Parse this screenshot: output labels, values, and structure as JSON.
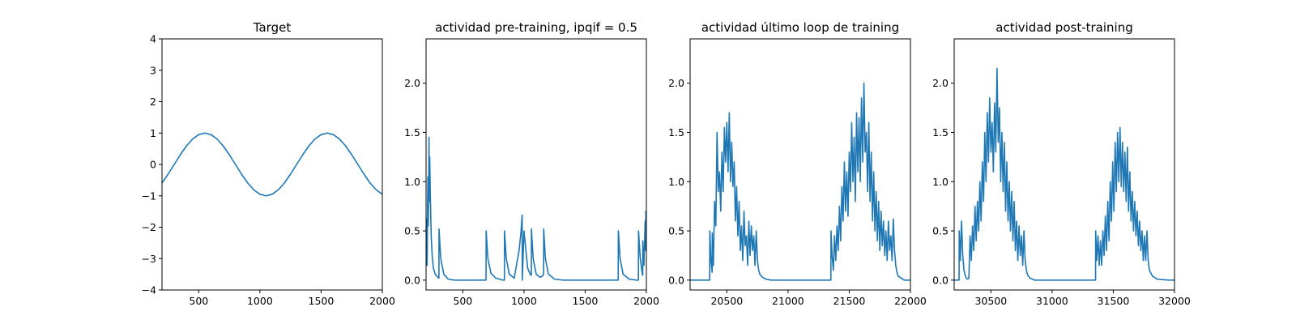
{
  "chart_data": [
    {
      "type": "line",
      "title": "Target",
      "xlim": [
        200,
        2000
      ],
      "ylim": [
        -4,
        4
      ],
      "xticks": [
        500,
        1000,
        1500,
        2000
      ],
      "xtick_labels": [
        "500",
        "1000",
        "1500",
        "2000"
      ],
      "yticks": [
        -4,
        -3,
        -2,
        -1,
        0,
        1,
        2,
        3,
        4
      ],
      "ytick_labels": [
        "−4",
        "−3",
        "−2",
        "−1",
        "0",
        "1",
        "2",
        "3",
        "4"
      ],
      "series": [
        {
          "color": "#1f77b4",
          "x": [
            200,
            250,
            300,
            350,
            400,
            450,
            500,
            550,
            600,
            650,
            700,
            750,
            800,
            850,
            900,
            950,
            1000,
            1050,
            1100,
            1150,
            1200,
            1250,
            1300,
            1350,
            1400,
            1450,
            1500,
            1550,
            1600,
            1650,
            1700,
            1750,
            1800,
            1850,
            1900,
            1950,
            2000
          ],
          "y": [
            -0.59,
            -0.31,
            0.0,
            0.31,
            0.59,
            0.81,
            0.95,
            1.0,
            0.95,
            0.81,
            0.59,
            0.31,
            0.0,
            -0.31,
            -0.59,
            -0.81,
            -0.95,
            -1.0,
            -0.95,
            -0.81,
            -0.59,
            -0.31,
            0.0,
            0.31,
            0.59,
            0.81,
            0.95,
            1.0,
            0.95,
            0.81,
            0.59,
            0.31,
            0.0,
            -0.31,
            -0.59,
            -0.81,
            -0.95
          ]
        }
      ]
    },
    {
      "type": "line",
      "title": "actividad pre-training, ipqif = 0.5",
      "xlim": [
        200,
        2000
      ],
      "ylim": [
        -0.1,
        2.45
      ],
      "xticks": [
        500,
        1000,
        1500,
        2000
      ],
      "xtick_labels": [
        "500",
        "1000",
        "1500",
        "2000"
      ],
      "yticks": [
        0.0,
        0.5,
        1.0,
        1.5,
        2.0
      ],
      "ytick_labels": [
        "0.0",
        "0.5",
        "1.0",
        "1.5",
        "2.0"
      ],
      "series": [
        {
          "color": "#1f77b4",
          "x": [
            200,
            203,
            206,
            209,
            212,
            215,
            218,
            221,
            224,
            227,
            230,
            235,
            242,
            250,
            260,
            275,
            295,
            305,
            306,
            320,
            345,
            380,
            430,
            500,
            600,
            680,
            690,
            691,
            705,
            730,
            770,
            830,
            840,
            841,
            855,
            880,
            920,
            960,
            975,
            985,
            986,
            1000,
            1030,
            1055,
            1060,
            1061,
            1075,
            1100,
            1130,
            1150,
            1160,
            1161,
            1175,
            1200,
            1250,
            1320,
            1450,
            1600,
            1700,
            1760,
            1770,
            1771,
            1785,
            1810,
            1860,
            1920,
            1935,
            1936,
            1950,
            1968,
            1970,
            1971,
            1980,
            1990,
            1995,
            1996,
            2000
          ],
          "y": [
            0.18,
            0.62,
            0.35,
            0.15,
            0.7,
            1.05,
            0.55,
            0.85,
            1.45,
            0.8,
            1.25,
            0.85,
            0.45,
            0.25,
            0.12,
            0.06,
            0.03,
            0.02,
            0.52,
            0.22,
            0.06,
            0.01,
            0.0,
            0.0,
            0.0,
            0.0,
            0.0,
            0.5,
            0.22,
            0.07,
            0.02,
            0.0,
            0.0,
            0.5,
            0.22,
            0.06,
            0.02,
            0.3,
            0.48,
            0.66,
            0.0,
            0.5,
            0.12,
            0.05,
            0.05,
            0.52,
            0.22,
            0.06,
            0.03,
            0.04,
            0.06,
            0.52,
            0.22,
            0.06,
            0.01,
            0.0,
            0.0,
            0.0,
            0.0,
            0.0,
            0.0,
            0.5,
            0.22,
            0.06,
            0.01,
            0.0,
            0.0,
            0.5,
            0.22,
            0.05,
            0.05,
            0.4,
            0.15,
            0.6,
            0.3,
            0.7,
            0.3
          ]
        }
      ]
    },
    {
      "type": "line",
      "title": "actividad último loop de training",
      "xlim": [
        20200,
        22000
      ],
      "ylim": [
        -0.1,
        2.45
      ],
      "xticks": [
        20500,
        21000,
        21500,
        22000
      ],
      "xtick_labels": [
        "20500",
        "21000",
        "21500",
        "22000"
      ],
      "yticks": [
        0.0,
        0.5,
        1.0,
        1.5,
        2.0
      ],
      "ytick_labels": [
        "0.0",
        "0.5",
        "1.0",
        "1.5",
        "2.0"
      ],
      "series": [
        {
          "color": "#1f77b4",
          "x": [
            20200,
            20300,
            20360,
            20361,
            20370,
            20380,
            20381,
            20390,
            20400,
            20410,
            20420,
            20430,
            20440,
            20450,
            20460,
            20470,
            20480,
            20490,
            20500,
            20510,
            20520,
            20530,
            20540,
            20550,
            20560,
            20570,
            20580,
            20590,
            20600,
            20610,
            20620,
            20630,
            20640,
            20650,
            20660,
            20670,
            20680,
            20690,
            20700,
            20710,
            20720,
            20730,
            20740,
            20750,
            20760,
            20770,
            20790,
            20820,
            20860,
            20950,
            21100,
            21250,
            21350,
            21351,
            21360,
            21370,
            21380,
            21390,
            21400,
            21410,
            21420,
            21430,
            21440,
            21450,
            21460,
            21470,
            21480,
            21490,
            21500,
            21510,
            21520,
            21530,
            21540,
            21550,
            21560,
            21570,
            21580,
            21590,
            21600,
            21610,
            21620,
            21630,
            21640,
            21650,
            21660,
            21670,
            21680,
            21690,
            21700,
            21710,
            21720,
            21730,
            21740,
            21750,
            21760,
            21770,
            21780,
            21790,
            21800,
            21810,
            21820,
            21830,
            21840,
            21850,
            21860,
            21870,
            21880,
            21890,
            21900,
            21950,
            22000
          ],
          "y": [
            0.0,
            0.0,
            0.0,
            0.5,
            0.2,
            0.08,
            0.48,
            0.15,
            0.8,
            0.55,
            1.5,
            0.9,
            1.1,
            0.7,
            1.3,
            0.9,
            1.55,
            1.2,
            1.6,
            1.1,
            1.7,
            1.0,
            1.4,
            0.95,
            1.2,
            0.6,
            0.95,
            0.45,
            0.8,
            0.3,
            0.55,
            0.2,
            0.7,
            0.35,
            0.45,
            0.15,
            0.6,
            0.25,
            0.55,
            0.3,
            0.45,
            0.15,
            0.5,
            0.2,
            0.1,
            0.06,
            0.03,
            0.01,
            0.0,
            0.0,
            0.0,
            0.0,
            0.0,
            0.5,
            0.25,
            0.1,
            0.45,
            0.2,
            0.55,
            0.3,
            0.75,
            0.4,
            0.95,
            0.6,
            1.2,
            0.7,
            1.1,
            0.65,
            1.3,
            0.9,
            1.6,
            1.0,
            1.45,
            0.8,
            1.7,
            1.1,
            1.65,
            1.0,
            1.85,
            1.2,
            2.0,
            1.3,
            1.5,
            0.9,
            1.6,
            0.8,
            1.3,
            0.6,
            1.1,
            0.5,
            0.9,
            0.4,
            0.8,
            0.3,
            0.7,
            0.35,
            0.6,
            0.25,
            0.5,
            0.2,
            0.6,
            0.3,
            0.45,
            0.2,
            0.62,
            0.3,
            0.15,
            0.08,
            0.04,
            0.0,
            0.0
          ]
        }
      ]
    },
    {
      "type": "line",
      "title": "actividad post-training",
      "xlim": [
        30200,
        32000
      ],
      "ylim": [
        -0.1,
        2.45
      ],
      "xticks": [
        30500,
        31000,
        31500,
        32000
      ],
      "xtick_labels": [
        "30500",
        "31000",
        "31500",
        "32000"
      ],
      "yticks": [
        0.0,
        0.5,
        1.0,
        1.5,
        2.0
      ],
      "ytick_labels": [
        "0.0",
        "0.5",
        "1.0",
        "1.5",
        "2.0"
      ],
      "series": [
        {
          "color": "#1f77b4",
          "x": [
            30200,
            30230,
            30240,
            30241,
            30250,
            30260,
            30270,
            30280,
            30290,
            30300,
            30310,
            30320,
            30330,
            30340,
            30350,
            30360,
            30370,
            30380,
            30390,
            30400,
            30410,
            30420,
            30430,
            30440,
            30450,
            30460,
            30470,
            30480,
            30490,
            30500,
            30510,
            30520,
            30530,
            30540,
            30550,
            30560,
            30570,
            30580,
            30590,
            30600,
            30610,
            30620,
            30630,
            30640,
            30650,
            30660,
            30670,
            30680,
            30690,
            30700,
            30710,
            30720,
            30730,
            30740,
            30750,
            30760,
            30770,
            30780,
            30790,
            30800,
            30820,
            30860,
            30950,
            31100,
            31250,
            31355,
            31356,
            31365,
            31375,
            31385,
            31395,
            31405,
            31415,
            31425,
            31435,
            31445,
            31455,
            31465,
            31475,
            31485,
            31495,
            31505,
            31515,
            31525,
            31535,
            31545,
            31555,
            31565,
            31575,
            31585,
            31595,
            31605,
            31615,
            31625,
            31635,
            31645,
            31655,
            31665,
            31675,
            31685,
            31695,
            31705,
            31715,
            31725,
            31735,
            31745,
            31755,
            31765,
            31775,
            31785,
            31795,
            31820,
            31860,
            31950,
            32000
          ],
          "y": [
            0.0,
            0.0,
            0.0,
            0.5,
            0.2,
            0.6,
            0.25,
            0.1,
            0.05,
            0.02,
            0.01,
            0.02,
            0.45,
            0.2,
            0.55,
            0.3,
            0.75,
            0.4,
            0.8,
            0.5,
            1.0,
            0.6,
            1.2,
            0.8,
            1.5,
            1.0,
            1.7,
            1.2,
            1.85,
            1.3,
            1.6,
            1.1,
            1.8,
            1.3,
            2.15,
            1.4,
            1.75,
            1.0,
            1.5,
            0.9,
            1.4,
            0.7,
            1.2,
            0.6,
            1.0,
            0.5,
            0.9,
            0.4,
            0.8,
            0.3,
            0.6,
            0.2,
            0.55,
            0.25,
            0.45,
            0.15,
            0.5,
            0.2,
            0.1,
            0.05,
            0.02,
            0.0,
            0.0,
            0.0,
            0.0,
            0.0,
            0.5,
            0.2,
            0.45,
            0.15,
            0.4,
            0.15,
            0.5,
            0.25,
            0.65,
            0.3,
            0.8,
            0.4,
            1.0,
            0.6,
            1.2,
            0.7,
            1.4,
            0.9,
            1.5,
            1.0,
            1.55,
            0.95,
            1.4,
            0.9,
            1.3,
            0.8,
            1.35,
            0.7,
            1.1,
            0.6,
            0.9,
            0.5,
            0.8,
            0.45,
            0.7,
            0.35,
            0.6,
            0.3,
            0.5,
            0.2,
            0.45,
            0.2,
            0.5,
            0.2,
            0.1,
            0.04,
            0.01,
            0.0,
            0.0
          ]
        }
      ]
    }
  ]
}
